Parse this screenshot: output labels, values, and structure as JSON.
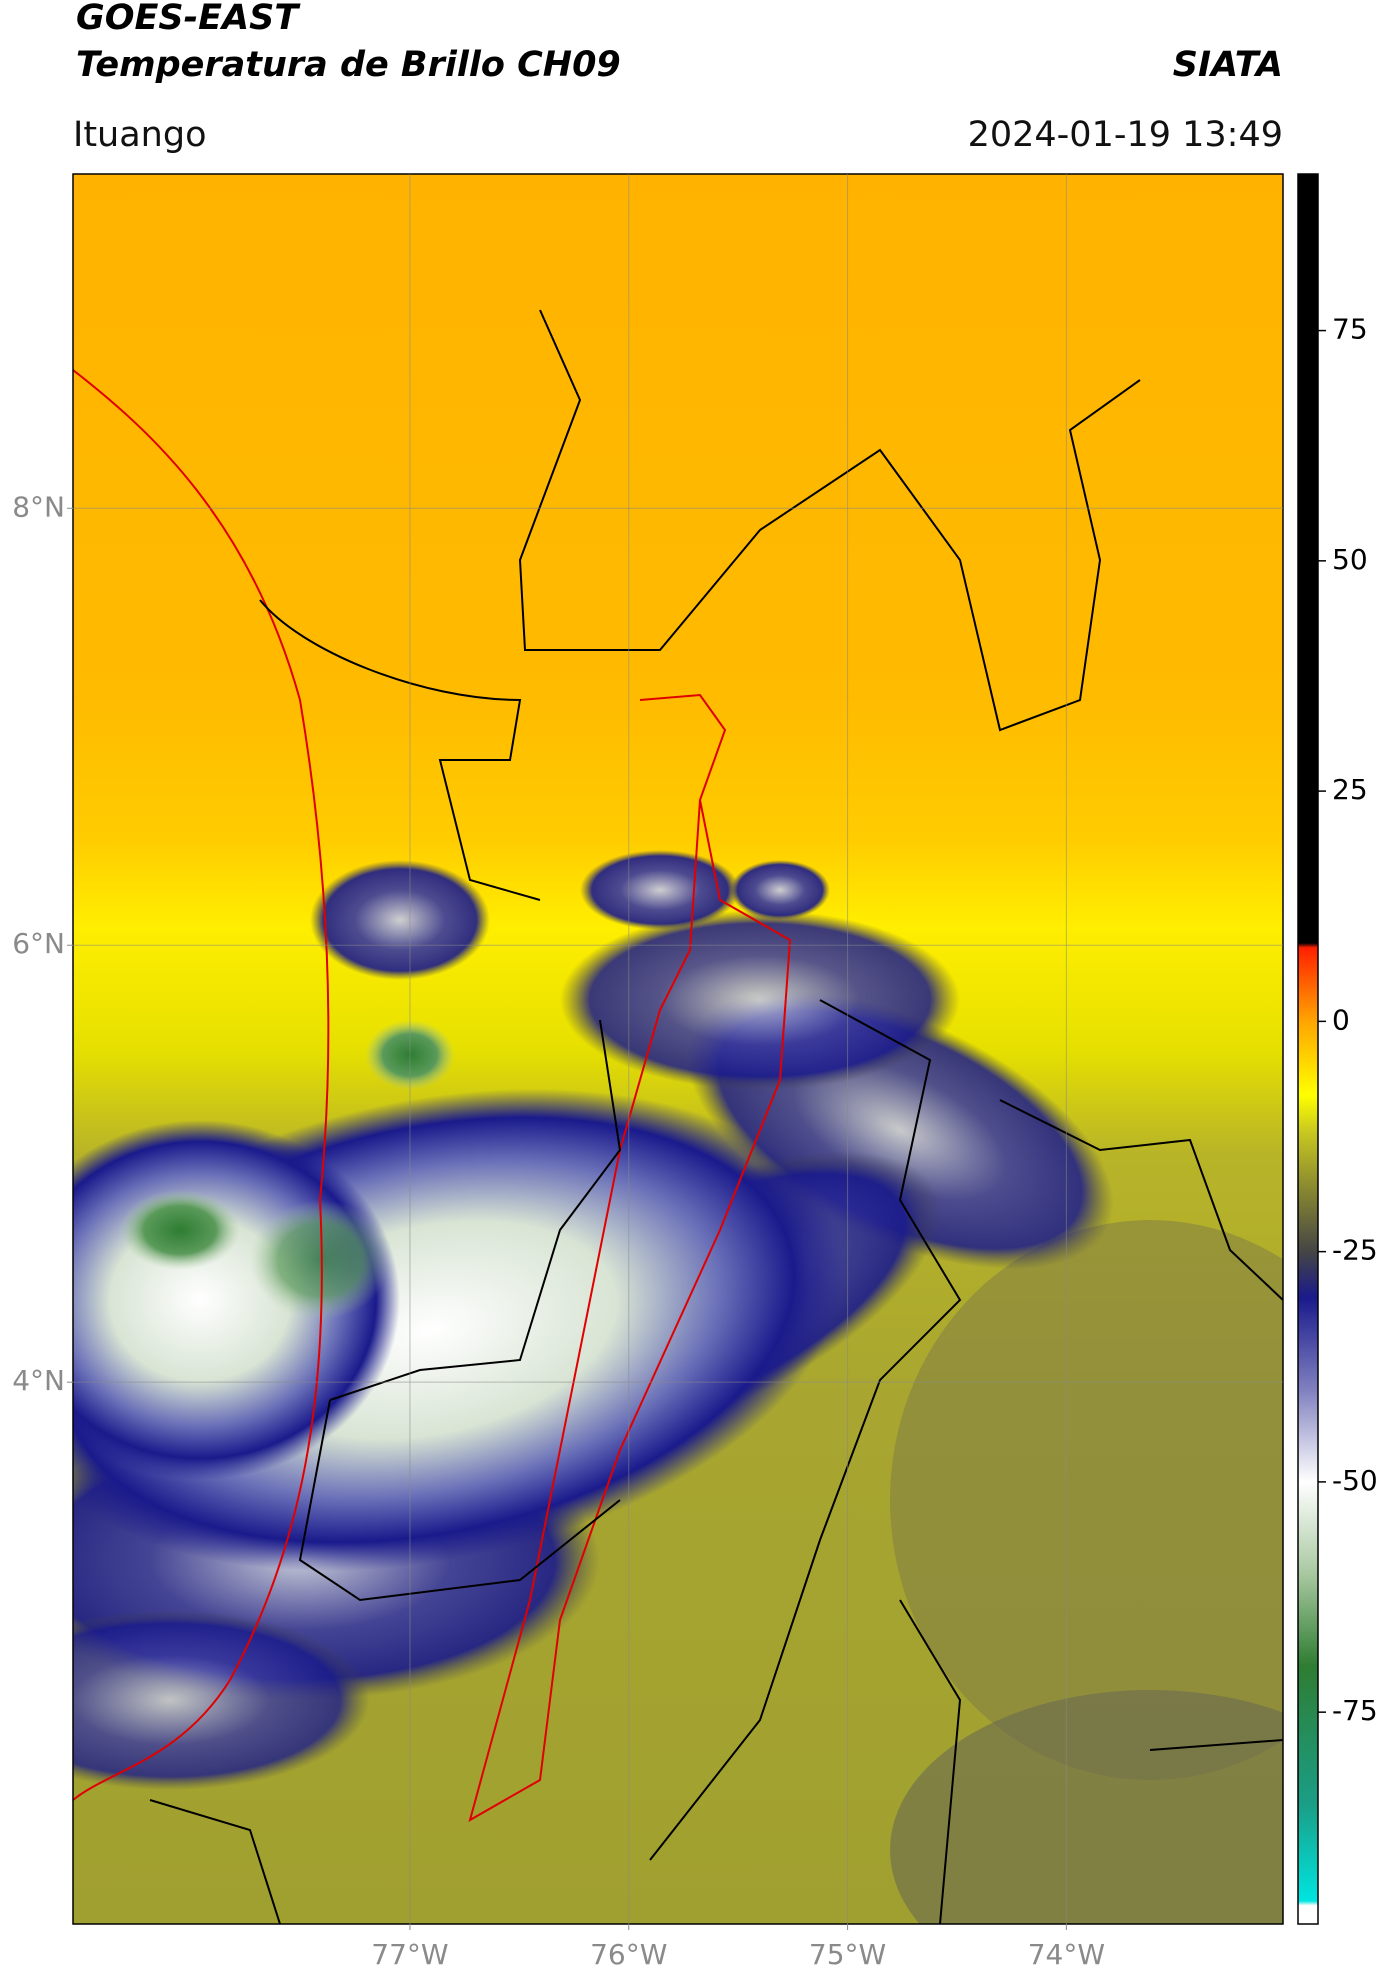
{
  "chart_data": {
    "type": "map",
    "title": "GOES-EAST",
    "subtitle": "Temperatura de Brillo CH09",
    "source": "SIATA",
    "location": "Ituango",
    "datetime": "2024-01-19 13:49",
    "xlim": [
      -78.54,
      -73.01
    ],
    "ylim": [
      1.52,
      9.53
    ],
    "xticks": [
      {
        "value": -77,
        "label": "77°W"
      },
      {
        "value": -76,
        "label": "76°W"
      },
      {
        "value": -75,
        "label": "75°W"
      },
      {
        "value": -74,
        "label": "74°W"
      }
    ],
    "yticks": [
      {
        "value": 8,
        "label": "8°N"
      },
      {
        "value": 6,
        "label": "6°N"
      },
      {
        "value": 4,
        "label": "4°N"
      }
    ],
    "grid": true,
    "colorbar": {
      "clim": [
        -98,
        92
      ],
      "ticks": [
        75,
        50,
        25,
        0,
        -25,
        -50,
        -75
      ],
      "stops": [
        {
          "value": -98,
          "color": "#ffffff"
        },
        {
          "value": -96,
          "color": "#ffffff"
        },
        {
          "value": -95.5,
          "color": "#00e5e0"
        },
        {
          "value": -85,
          "color": "#1a9e86"
        },
        {
          "value": -70,
          "color": "#2e7d32"
        },
        {
          "value": -60,
          "color": "#a8c8a0"
        },
        {
          "value": -50,
          "color": "#ffffff"
        },
        {
          "value": -40,
          "color": "#8080c0"
        },
        {
          "value": -30,
          "color": "#1a1a8c"
        },
        {
          "value": -25,
          "color": "#454545"
        },
        {
          "value": -18,
          "color": "#8a8a30"
        },
        {
          "value": -12,
          "color": "#c8c820"
        },
        {
          "value": -8,
          "color": "#ffff00"
        },
        {
          "value": 0,
          "color": "#ffa500"
        },
        {
          "value": 8,
          "color": "#ff2000"
        },
        {
          "value": 8.5,
          "color": "#000000"
        },
        {
          "value": 92,
          "color": "#000000"
        }
      ]
    }
  }
}
